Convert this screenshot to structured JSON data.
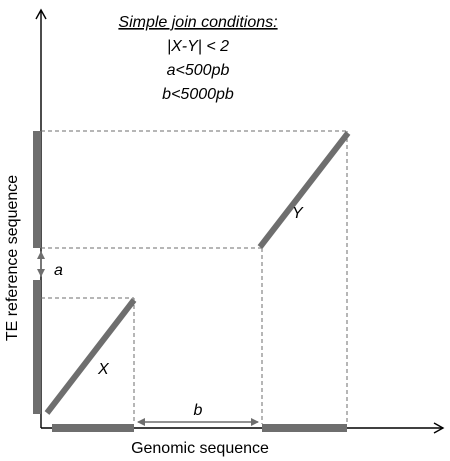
{
  "title": "Simple join conditions:",
  "conditions": [
    "|X-Y| < 2",
    "a<500pb",
    "b<5000pb"
  ],
  "axes": {
    "x_label": "Genomic sequence",
    "y_label": "TE reference sequence"
  },
  "fragments": {
    "x_label": "X",
    "y_label": "Y"
  },
  "gaps": {
    "vertical_label": "a",
    "horizontal_label": "b"
  },
  "colors": {
    "segment": "#6e6e6e",
    "axis": "#000000",
    "guide": "#6e6e6e",
    "text": "#000000"
  }
}
